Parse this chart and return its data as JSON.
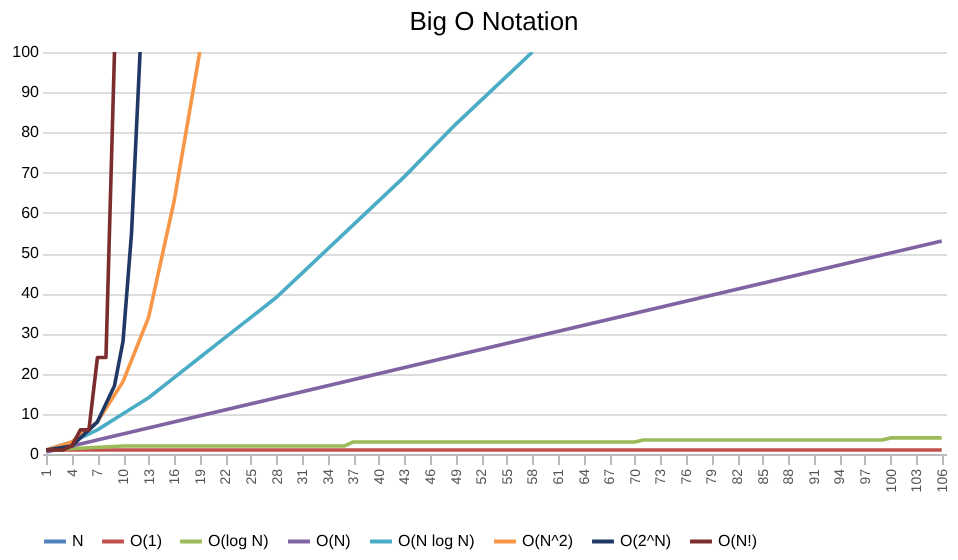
{
  "chart_data": {
    "type": "line",
    "title": "Big O Notation",
    "xlim": [
      0.5,
      106.5
    ],
    "xticks": [
      1,
      4,
      7,
      10,
      13,
      16,
      19,
      22,
      25,
      28,
      31,
      34,
      37,
      40,
      43,
      46,
      49,
      52,
      55,
      58,
      61,
      64,
      67,
      70,
      73,
      76,
      79,
      82,
      85,
      88,
      91,
      94,
      97,
      100,
      103,
      106
    ],
    "ylim": [
      0,
      100
    ],
    "yticks": [
      0,
      10,
      20,
      30,
      40,
      50,
      60,
      70,
      80,
      90,
      100
    ],
    "grid": "y",
    "legend": "bottom",
    "marker": "none",
    "line_style": "solid",
    "series": [
      {
        "name": "N",
        "color": "#4f81bd"
      },
      {
        "name": "O(1)",
        "color": "#c0504d",
        "x": [
          1,
          106
        ],
        "values": [
          1,
          1
        ]
      },
      {
        "name": "O(log N)",
        "color": "#9bbb59",
        "x": [
          1,
          10,
          36,
          37,
          70,
          71,
          99,
          100,
          106
        ],
        "values": [
          1,
          2,
          2,
          3,
          3,
          3.5,
          3.5,
          4,
          4
        ]
      },
      {
        "name": "O(N)",
        "color": "#8064a2",
        "x": [
          1,
          106
        ],
        "values": [
          0.5,
          53
        ]
      },
      {
        "name": "O(N log N)",
        "color": "#4bacc6",
        "x": [
          1,
          4,
          7,
          10,
          13,
          16,
          19,
          22,
          25,
          28,
          31,
          37,
          43,
          49,
          55,
          58
        ],
        "values": [
          1,
          3,
          6,
          10,
          14,
          19,
          24,
          29,
          34,
          39,
          45,
          57,
          69,
          82,
          94,
          100
        ]
      },
      {
        "name": "O(N^2)",
        "color": "#f79646",
        "x": [
          1,
          4,
          7,
          10,
          13,
          16,
          19
        ],
        "values": [
          1,
          3,
          8,
          18,
          34,
          63,
          100
        ]
      },
      {
        "name": "O(2^N)",
        "color": "#1f3864",
        "x": [
          1,
          4,
          7,
          9,
          10,
          11,
          12
        ],
        "values": [
          1,
          2,
          8,
          17,
          28,
          55,
          100
        ]
      },
      {
        "name": "O(N!)",
        "color": "#7b2c2c",
        "x": [
          1,
          3,
          4,
          5,
          6,
          7,
          8,
          9
        ],
        "values": [
          1,
          1,
          2,
          6,
          6,
          24,
          24,
          100
        ]
      }
    ]
  }
}
